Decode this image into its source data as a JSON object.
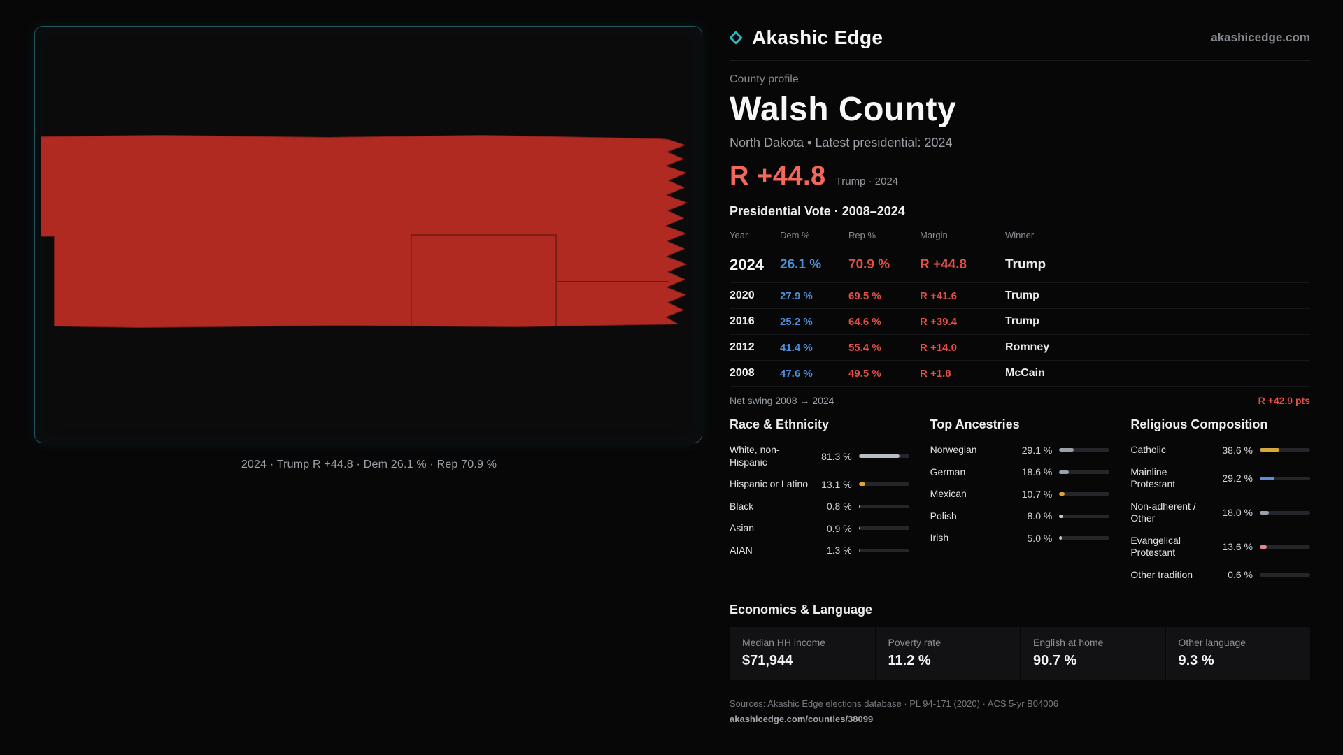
{
  "brand": {
    "name": "Akashic Edge",
    "domain": "akashicedge.com",
    "accent": "#2fb6bd"
  },
  "map": {
    "caption": "2024 · Trump R +44.8 · Dem 26.1 % · Rep 70.9 %",
    "fill_color": "#b02a22"
  },
  "profile": {
    "eyebrow": "County profile",
    "title": "Walsh County",
    "subtitle": "North Dakota • Latest presidential: 2024",
    "headline_margin": "R +44.8",
    "headline_note": "Trump · 2024",
    "table_title": "Presidential Vote · 2008–2024"
  },
  "colors": {
    "dem_blue": "#4d8fd6",
    "rep_red": "#e25043",
    "headline_red": "#f4685c"
  },
  "vote_table": {
    "columns": [
      "Year",
      "Dem %",
      "Rep %",
      "Margin",
      "Winner"
    ],
    "rows": [
      {
        "year": "2024",
        "dem": "26.1 %",
        "rep": "70.9 %",
        "margin": "R +44.8",
        "winner": "Trump"
      },
      {
        "year": "2020",
        "dem": "27.9 %",
        "rep": "69.5 %",
        "margin": "R +41.6",
        "winner": "Trump"
      },
      {
        "year": "2016",
        "dem": "25.2 %",
        "rep": "64.6 %",
        "margin": "R +39.4",
        "winner": "Trump"
      },
      {
        "year": "2012",
        "dem": "41.4 %",
        "rep": "55.4 %",
        "margin": "R +14.0",
        "winner": "Romney"
      },
      {
        "year": "2008",
        "dem": "47.6 %",
        "rep": "49.5 %",
        "margin": "R +1.8",
        "winner": "McCain"
      }
    ]
  },
  "net_swing": {
    "label": "Net swing 2008 → 2024",
    "value": "R +42.9 pts"
  },
  "race": {
    "title": "Race & Ethnicity",
    "rows": [
      {
        "label": "White, non-Hispanic",
        "value": "81.3 %",
        "pct": 81.3,
        "color": "#b7bdc7"
      },
      {
        "label": "Hispanic or Latino",
        "value": "13.1 %",
        "pct": 13.1,
        "color": "#e2a33c"
      },
      {
        "label": "Black",
        "value": "0.8 %",
        "pct": 0.8,
        "color": "#c3c8d0"
      },
      {
        "label": "Asian",
        "value": "0.9 %",
        "pct": 0.9,
        "color": "#c3c8d0"
      },
      {
        "label": "AIAN",
        "value": "1.3 %",
        "pct": 1.3,
        "color": "#d4603a"
      }
    ]
  },
  "ancestries": {
    "title": "Top Ancestries",
    "rows": [
      {
        "label": "Norwegian",
        "value": "29.1 %",
        "pct": 29.1,
        "color": "#9aa1ab"
      },
      {
        "label": "German",
        "value": "18.6 %",
        "pct": 18.6,
        "color": "#9aa1ab"
      },
      {
        "label": "Mexican",
        "value": "10.7 %",
        "pct": 10.7,
        "color": "#e2a33c"
      },
      {
        "label": "Polish",
        "value": "8.0 %",
        "pct": 8.0,
        "color": "#c3c8d0"
      },
      {
        "label": "Irish",
        "value": "5.0 %",
        "pct": 5.0,
        "color": "#c3c8d0"
      }
    ]
  },
  "religion": {
    "title": "Religious Composition",
    "rows": [
      {
        "label": "Catholic",
        "value": "38.6 %",
        "pct": 38.6,
        "color": "#d9a83c"
      },
      {
        "label": "Mainline Protestant",
        "value": "29.2 %",
        "pct": 29.2,
        "color": "#5b8fd9"
      },
      {
        "label": "Non-adherent / Other",
        "value": "18.0 %",
        "pct": 18.0,
        "color": "#9aa1ab"
      },
      {
        "label": "Evangelical Protestant",
        "value": "13.6 %",
        "pct": 13.6,
        "color": "#e9868f"
      },
      {
        "label": "Other tradition",
        "value": "0.6 %",
        "pct": 0.6,
        "color": "#c3c8d0"
      }
    ]
  },
  "economics": {
    "title": "Economics & Language",
    "cells": [
      {
        "label": "Median HH income",
        "value": "$71,944"
      },
      {
        "label": "Poverty rate",
        "value": "11.2 %"
      },
      {
        "label": "English at home",
        "value": "90.7 %"
      },
      {
        "label": "Other language",
        "value": "9.3 %"
      }
    ]
  },
  "footer": {
    "sources": "Sources: Akashic Edge elections database · PL 94-171 (2020) · ACS 5-yr B04006",
    "link": "akashicedge.com/counties/38099"
  }
}
